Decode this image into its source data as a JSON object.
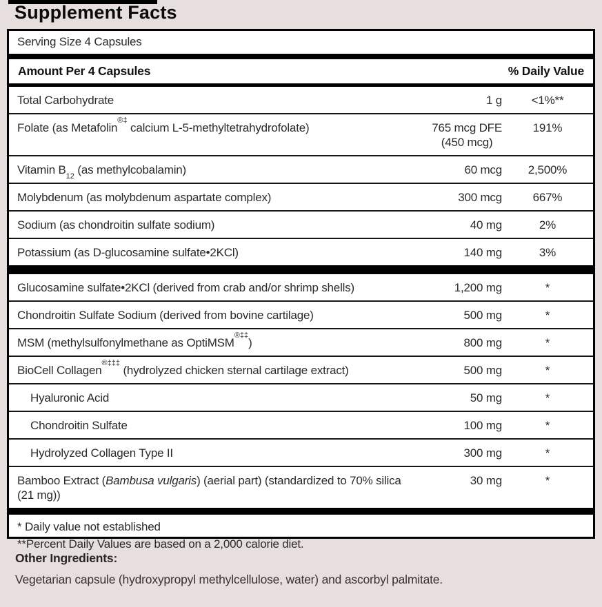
{
  "label": {
    "title": "Supplement Facts",
    "serving_size": "Serving Size 4 Capsules",
    "columns": {
      "amount_header": "Amount Per 4 Capsules",
      "dv_header": "% Daily Value"
    },
    "sections": {
      "nutrients": [
        {
          "parts": [
            {
              "t": "Total Carbohydrate"
            }
          ],
          "amount": "1 g",
          "dv": "<1%**"
        },
        {
          "parts": [
            {
              "t": "Folate (as Metafolin"
            },
            {
              "t": "®‡",
              "s": "sup"
            },
            {
              "t": " calcium L-5-methyltetrahydrofolate)"
            }
          ],
          "amount": "765 mcg DFE",
          "amount2": "(450 mcg)",
          "dv": "191%"
        },
        {
          "parts": [
            {
              "t": "Vitamin B"
            },
            {
              "t": "12",
              "s": "sub"
            },
            {
              "t": " (as methylcobalamin)"
            }
          ],
          "amount": "60 mcg",
          "dv": "2,500%"
        },
        {
          "parts": [
            {
              "t": "Molybdenum (as molybdenum aspartate complex)"
            }
          ],
          "amount": "300 mcg",
          "dv": "667%"
        },
        {
          "parts": [
            {
              "t": "Sodium (as chondroitin sulfate sodium)"
            }
          ],
          "amount": "40 mg",
          "dv": "2%"
        },
        {
          "parts": [
            {
              "t": "Potassium (as D-glucosamine sulfate•2KCl)"
            }
          ],
          "amount": "140 mg",
          "dv": "3%"
        }
      ],
      "blend": [
        {
          "parts": [
            {
              "t": "Glucosamine sulfate•2KCl (derived from crab and/or shrimp shells)"
            }
          ],
          "amount": "1,200 mg",
          "dv": "*"
        },
        {
          "parts": [
            {
              "t": "Chondroitin Sulfate Sodium (derived from bovine cartilage)"
            }
          ],
          "amount": "500 mg",
          "dv": "*"
        },
        {
          "parts": [
            {
              "t": "MSM (methylsulfonylmethane as OptiMSM"
            },
            {
              "t": "®‡‡",
              "s": "sup"
            },
            {
              "t": ")"
            }
          ],
          "amount": "800 mg",
          "dv": "*"
        },
        {
          "parts": [
            {
              "t": "BioCell Collagen"
            },
            {
              "t": "®‡‡‡",
              "s": "sup"
            },
            {
              "t": " (hydrolyzed chicken sternal cartilage extract)"
            }
          ],
          "amount": "500 mg",
          "dv": "*"
        },
        {
          "parts": [
            {
              "t": "Hyaluronic Acid"
            }
          ],
          "indent": true,
          "amount": "50 mg",
          "dv": "*"
        },
        {
          "parts": [
            {
              "t": "Chondroitin Sulfate"
            }
          ],
          "indent": true,
          "amount": "100 mg",
          "dv": "*"
        },
        {
          "parts": [
            {
              "t": "Hydrolyzed Collagen Type II"
            }
          ],
          "indent": true,
          "amount": "300 mg",
          "dv": "*"
        },
        {
          "parts": [
            {
              "t": "Bamboo Extract ("
            },
            {
              "t": "Bambusa vulgaris",
              "s": "italic"
            },
            {
              "t": ") (aerial part) (standardized to 70% silica (21 mg))"
            }
          ],
          "amount": "30 mg",
          "dv": "*"
        }
      ]
    },
    "footnotes": [
      "* Daily value not established",
      "**Percent Daily Values are based on a 2,000 calorie diet."
    ],
    "other_ingredients": {
      "label": "Other Ingredients:",
      "text": "Vegetarian capsule (hydroxypropyl methylcellulose, water) and ascorbyl palmitate."
    },
    "colors": {
      "background": "#e6dfde",
      "panel": "#ffffff",
      "rule": "#000000",
      "text": "#2e2a29"
    }
  }
}
